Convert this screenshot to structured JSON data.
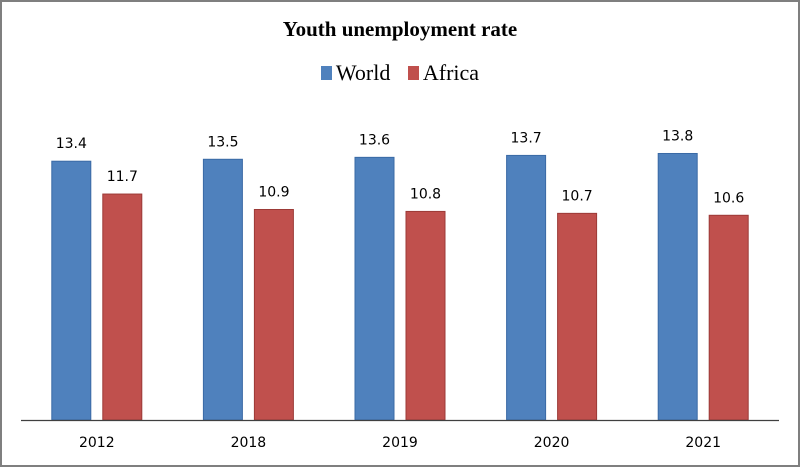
{
  "chart_data": {
    "type": "bar",
    "title": "Youth unemployment rate",
    "categories": [
      "2012",
      "2018",
      "2019",
      "2020",
      "2021"
    ],
    "series": [
      {
        "name": "World",
        "color": "#4f81bd",
        "values": [
          13.4,
          13.5,
          13.6,
          13.7,
          13.8
        ]
      },
      {
        "name": "Africa",
        "color": "#c0504d",
        "values": [
          11.7,
          10.9,
          10.8,
          10.7,
          10.6
        ]
      }
    ],
    "xlabel": "",
    "ylabel": "",
    "ylim": [
      0,
      16
    ],
    "grid": false,
    "legend": "top",
    "data_labels": true
  }
}
